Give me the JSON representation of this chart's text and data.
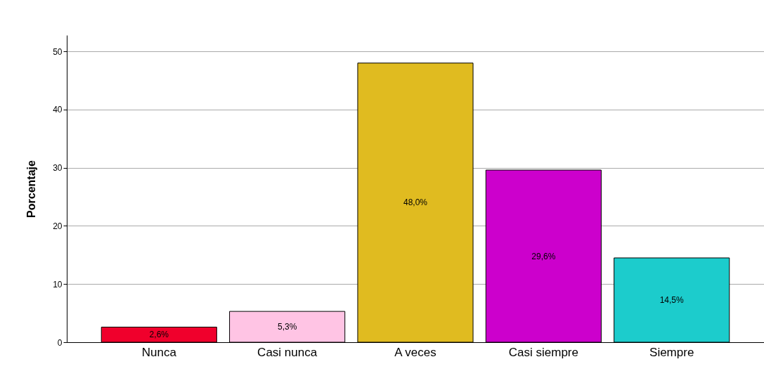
{
  "chart_data": {
    "type": "bar",
    "ylabel": "Porcentaje",
    "categories": [
      "Nunca",
      "Casi nunca",
      "A veces",
      "Casi siempre",
      "Siempre"
    ],
    "values": [
      2.6,
      5.3,
      48.0,
      29.6,
      14.5
    ],
    "value_labels": [
      "2,6%",
      "5,3%",
      "48,0%",
      "29,6%",
      "14,5%"
    ],
    "colors": [
      "#f0002c",
      "#ffc4e4",
      "#e0bb20",
      "#cc00cc",
      "#1ccccc"
    ],
    "ylim": [
      0,
      52.8
    ],
    "yticks": [
      0,
      10,
      20,
      30,
      40,
      50
    ],
    "grid": "y"
  }
}
